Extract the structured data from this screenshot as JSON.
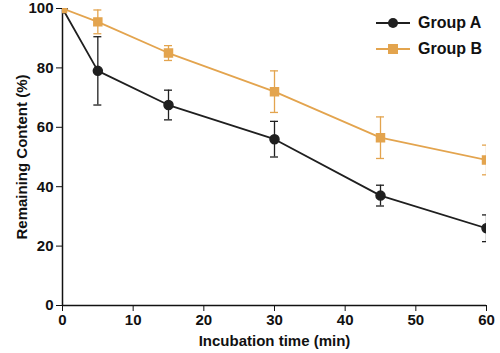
{
  "chart_data": {
    "type": "line",
    "x_label": "Incubation time (min)",
    "y_label": "Remaining Content (%)",
    "x": [
      0,
      5,
      15,
      30,
      45,
      60
    ],
    "series": [
      {
        "name": "Group A",
        "color": "#1f1f1f",
        "marker": "circle",
        "line_style": "solid",
        "values": [
          100,
          79,
          67.5,
          56,
          37,
          26
        ],
        "errors": [
          0,
          11.5,
          5,
          6,
          3.5,
          4.5
        ]
      },
      {
        "name": "Group B",
        "color": "#e3a44e",
        "marker": "square",
        "line_style": "solid",
        "values": [
          100,
          95.5,
          85,
          72,
          56.5,
          49
        ],
        "errors": [
          0,
          4,
          2.5,
          7,
          7,
          5
        ]
      }
    ],
    "xlim": [
      0,
      60
    ],
    "xticks": [
      0,
      10,
      20,
      30,
      40,
      50,
      60
    ],
    "ylim": [
      0,
      100
    ],
    "yticks": [
      0,
      20,
      40,
      60,
      80,
      100
    ],
    "grid": false,
    "legend": "upper right"
  }
}
